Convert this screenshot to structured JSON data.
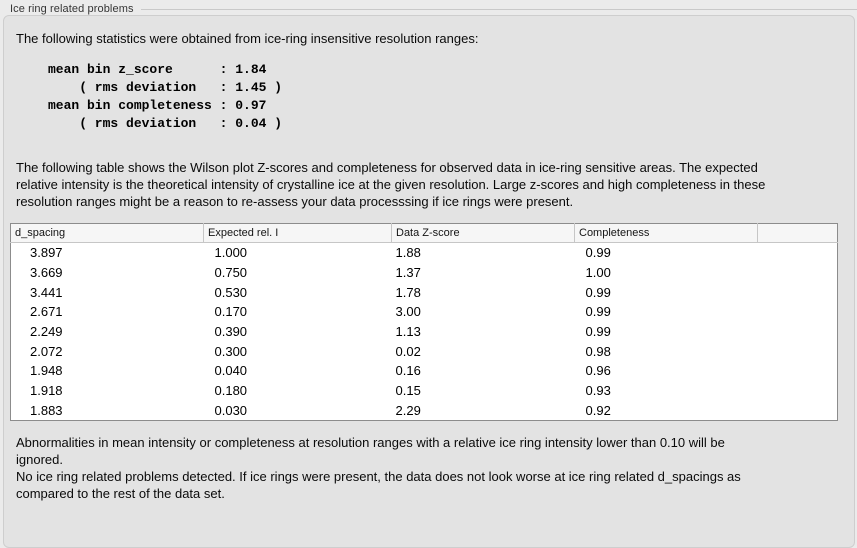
{
  "panel": {
    "title": "Ice ring related problems"
  },
  "intro": "The following statistics were obtained from ice-ring insensitive resolution ranges:",
  "stats_block": "mean bin z_score      : 1.84\n    ( rms deviation   : 1.45 )\nmean bin completeness : 0.97\n    ( rms deviation   : 0.04 )",
  "stats": {
    "mean_bin_z_score": "1.84",
    "z_score_rms_deviation": "1.45",
    "mean_bin_completeness": "0.97",
    "completeness_rms_deviation": "0.04"
  },
  "description": "The following table shows the Wilson plot Z-scores and completeness for observed data in ice-ring sensitive areas. The expected relative intensity is the theoretical intensity of crystalline ice at the given resolution. Large z-scores and high completeness in these resolution ranges might be a reason to re-assess your data processsing if ice rings were present.",
  "table": {
    "columns": [
      "d_spacing",
      "Expected rel. I",
      "Data Z-score",
      "Completeness",
      ""
    ],
    "rows": [
      [
        "3.897",
        "1.000",
        "1.88",
        "0.99"
      ],
      [
        "3.669",
        "0.750",
        "1.37",
        "1.00"
      ],
      [
        "3.441",
        "0.530",
        "1.78",
        "0.99"
      ],
      [
        "2.671",
        "0.170",
        "3.00",
        "0.99"
      ],
      [
        "2.249",
        "0.390",
        "1.13",
        "0.99"
      ],
      [
        "2.072",
        "0.300",
        "0.02",
        "0.98"
      ],
      [
        "1.948",
        "0.040",
        "0.16",
        "0.96"
      ],
      [
        "1.918",
        "0.180",
        "0.15",
        "0.93"
      ],
      [
        "1.883",
        "0.030",
        "2.29",
        "0.92"
      ]
    ]
  },
  "note_ignore": "Abnormalities in mean intensity or completeness at resolution ranges with a relative ice ring intensity lower than 0.10 will be ignored.",
  "conclusion": "No ice ring related problems detected. If ice rings were present, the data does not look worse at ice ring related d_spacings as compared to the rest of the data set.",
  "colors": {
    "page_bg": "#ebebeb",
    "groupbox_bg": "#e3e3e3",
    "groupbox_border": "#cecece",
    "table_border": "#8c8c8c",
    "table_header_bg": "#f6f6f6",
    "text": "#0a0a0a"
  }
}
